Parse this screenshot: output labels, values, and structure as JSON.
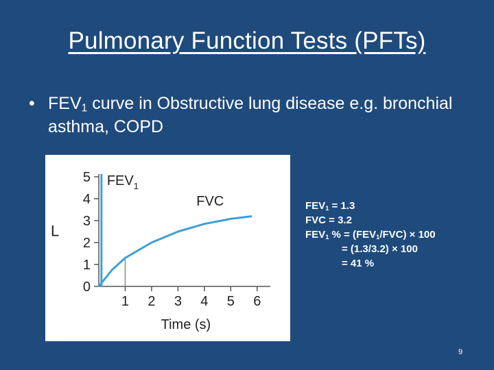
{
  "slide": {
    "title": "Pulmonary Function Tests (PFTs)",
    "bullet": {
      "marker": "•",
      "pre": "FEV",
      "sub": "1",
      "post": " curve in Obstructive lung disease e.g. bronchial asthma, COPD"
    },
    "page_number": "9"
  },
  "calc": {
    "fev1_pre": "FEV",
    "fev1_sub": "1",
    "fev1_post": " = 1.3",
    "fvc": "FVC = 3.2",
    "pct_a": "FEV",
    "pct_sub1": "1",
    "pct_b": " % = (FEV",
    "pct_sub2": "1",
    "pct_c": "/FVC) × 100",
    "line4": "= (1.3/3.2) × 100",
    "line5": "= 41 %"
  },
  "chart_data": {
    "type": "line",
    "xlabel": "Time (s)",
    "ylabel": "L",
    "xlim": [
      0,
      6.5
    ],
    "ylim": [
      0,
      5
    ],
    "x_ticks": [
      "1",
      "2",
      "3",
      "4",
      "5",
      "6"
    ],
    "y_ticks": [
      "0",
      "1",
      "2",
      "3",
      "4",
      "5"
    ],
    "labels": {
      "fev1_pre": "FEV",
      "fev1_sub": "1",
      "fvc": "FVC"
    },
    "series": [
      {
        "points": [
          [
            0,
            0
          ],
          [
            0.5,
            0.75
          ],
          [
            1,
            1.3
          ],
          [
            2,
            2.0
          ],
          [
            3,
            2.5
          ],
          [
            4,
            2.85
          ],
          [
            5,
            3.08
          ],
          [
            5.8,
            3.2
          ]
        ]
      }
    ],
    "vline_x": 0.1,
    "colors": {
      "curve": "#3d9fd8",
      "axis": "#555555"
    }
  }
}
